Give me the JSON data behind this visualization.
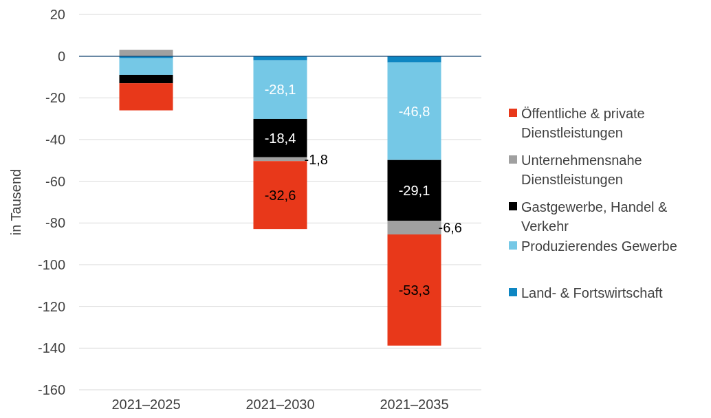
{
  "chart_data": {
    "type": "bar",
    "stacked": true,
    "ylabel": "in Tausend",
    "categories": [
      "2021–2025",
      "2021–2030",
      "2021–2035"
    ],
    "ylim": [
      -160,
      20
    ],
    "yticks": [
      -160,
      -140,
      -120,
      -100,
      -80,
      -60,
      -40,
      -20,
      0,
      20
    ],
    "grid": "y",
    "legend": "right",
    "ref_lines": [
      {
        "axis": "y",
        "value": 0,
        "color": "#1f4e79"
      }
    ],
    "series": [
      {
        "name": "Land- & Fortswirtschaft",
        "color": "#0e86c2",
        "values": [
          -1,
          -2,
          -3
        ],
        "value_labels": [
          null,
          null,
          null
        ]
      },
      {
        "name": "Produzierendes Gewerbe",
        "color": "#75c8e6",
        "values": [
          -8,
          -28.1,
          -46.8
        ],
        "value_labels": [
          null,
          "-28,1",
          "-46,8"
        ]
      },
      {
        "name": "Gastgewerbe, Handel & Verkehr",
        "color": "#000000",
        "values": [
          -4,
          -18.4,
          -29.1
        ],
        "value_labels": [
          null,
          "-18,4",
          "-29,1"
        ]
      },
      {
        "name": "Unternehmensnahe Dienstleistungen",
        "color": "#a0a0a0",
        "values": [
          3,
          -1.8,
          -6.6
        ],
        "value_labels": [
          null,
          "-1,8",
          "-6,6"
        ]
      },
      {
        "name": "Öffentliche & private Dienstleistungen",
        "color": "#e8381a",
        "values": [
          -13,
          -32.6,
          -53.3
        ],
        "value_labels": [
          null,
          "-32,6",
          "-53,3"
        ]
      }
    ]
  }
}
